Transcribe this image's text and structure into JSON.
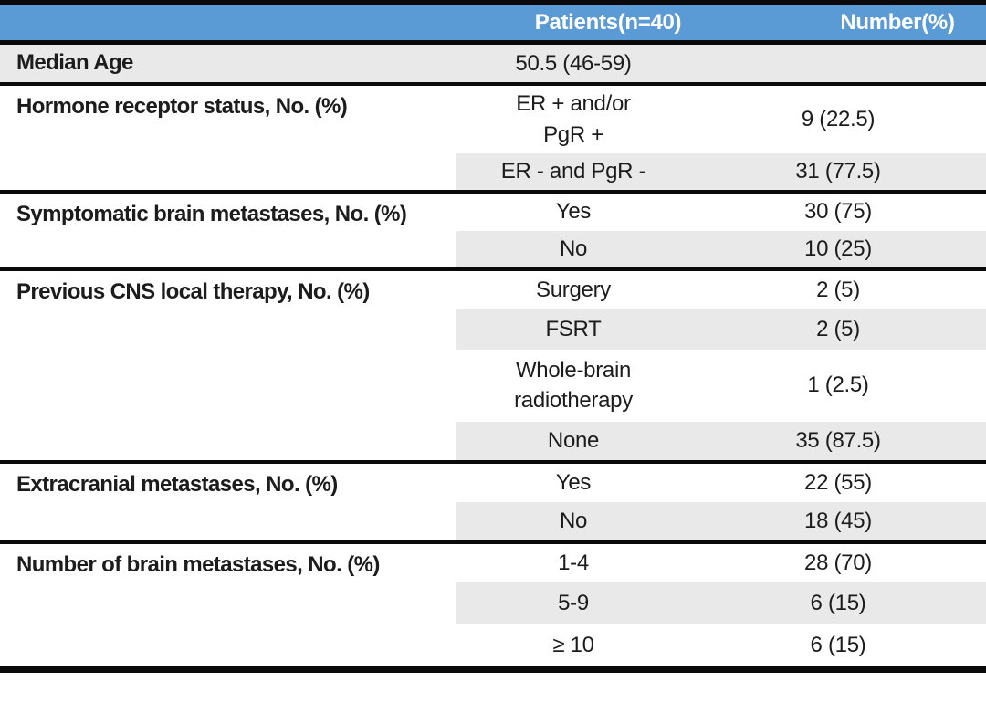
{
  "colors": {
    "header_bg": "#5b9bd5",
    "header_text": "#ffffff",
    "band_bg": "#e9e9e9",
    "line": "#0a0a0a",
    "text": "#1c1c1c",
    "page_bg": "#ffffff"
  },
  "header": {
    "col1": "",
    "col2": "Patients(n=40)",
    "col3": "Number(%)"
  },
  "sections": [
    {
      "label": "Median Age",
      "rows": [
        {
          "value": "50.5 (46-59)",
          "number": ""
        }
      ]
    },
    {
      "label": "Hormone receptor status, No. (%)",
      "rows": [
        {
          "value": "ER + and/or\nPgR +",
          "number": "9 (22.5)"
        },
        {
          "value": "ER - and PgR -",
          "number": "31 (77.5)"
        }
      ]
    },
    {
      "label": "Symptomatic brain metastases, No. (%)",
      "rows": [
        {
          "value": "Yes",
          "number": "30 (75)"
        },
        {
          "value": "No",
          "number": "10 (25)"
        }
      ]
    },
    {
      "label": "Previous CNS local therapy, No. (%)",
      "rows": [
        {
          "value": "Surgery",
          "number": "2 (5)"
        },
        {
          "value": "FSRT",
          "number": "2 (5)"
        },
        {
          "value": "Whole-brain\nradiotherapy",
          "number": "1 (2.5)"
        },
        {
          "value": "None",
          "number": "35 (87.5)"
        }
      ]
    },
    {
      "label": "Extracranial metastases, No. (%)",
      "rows": [
        {
          "value": "Yes",
          "number": "22 (55)"
        },
        {
          "value": "No",
          "number": "18 (45)"
        }
      ]
    },
    {
      "label": "Number of brain metastases, No. (%)",
      "rows": [
        {
          "value": "1-4",
          "number": "28 (70)"
        },
        {
          "value": "5-9",
          "number": "6 (15)"
        },
        {
          "value": "≥ 10",
          "number": "6 (15)"
        }
      ]
    }
  ]
}
